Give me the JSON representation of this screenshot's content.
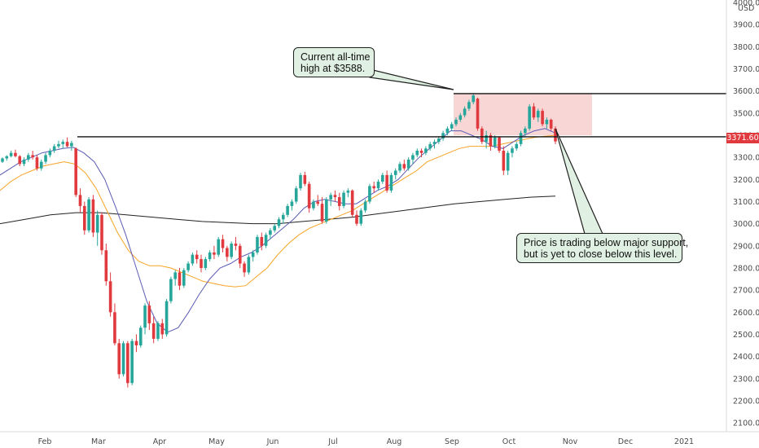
{
  "axis_currency": "USD",
  "last_price_label": "3371.60",
  "annotations": {
    "ath": {
      "lines": [
        "Current all-time",
        "high at $3588."
      ]
    },
    "support": {
      "lines": [
        "Price is trading below major support,",
        "but is yet to close below this level."
      ]
    }
  },
  "colors": {
    "up": "#26a69a",
    "down": "#e0393e",
    "ma_fast": "#5b5bb5",
    "ma_mid": "#f7a325",
    "ma_slow": "#222222",
    "zone": "#f8d6d6",
    "callout_bg": "#e0f0e2"
  },
  "chart_data": {
    "type": "candlestick",
    "title": "",
    "xlabel": "",
    "ylabel": "",
    "ylim": [
      2060,
      4000
    ],
    "y_ticks": [
      2100,
      2200,
      2300,
      2400,
      2500,
      2600,
      2700,
      2800,
      2900,
      3000,
      3100,
      3200,
      3300,
      3400,
      3500,
      3600,
      3700,
      3800,
      3900,
      4000
    ],
    "x_ticks": [
      "Feb",
      "Mar",
      "Apr",
      "May",
      "Jun",
      "Jul",
      "Aug",
      "Sep",
      "Oct",
      "Nov",
      "Dec",
      "2021"
    ],
    "grid": false,
    "levels": [
      {
        "name": "all-time high",
        "value": 3588
      },
      {
        "name": "major support",
        "value": 3393
      }
    ],
    "zone": {
      "from": "Sep",
      "to": "Oct",
      "low": 3400,
      "high": 3588
    },
    "series": [
      {
        "name": "",
        "type": "ma_fast",
        "values": [
          3220,
          3250,
          3280,
          3300,
          3320,
          3330,
          3340,
          3345,
          3320,
          3280,
          3200,
          3080,
          2950,
          2800,
          2650,
          2550,
          2510,
          2530,
          2600,
          2680,
          2750,
          2800,
          2820,
          2850,
          2870,
          2900,
          2940,
          2980,
          3020,
          3070,
          3100,
          3110,
          3100,
          3090,
          3090,
          3120,
          3150,
          3170,
          3200,
          3250,
          3300,
          3340,
          3380,
          3420,
          3420,
          3400,
          3380,
          3350,
          3340,
          3370,
          3400,
          3420,
          3430,
          3410
        ]
      },
      {
        "name": "",
        "type": "ma_mid",
        "values": [
          3150,
          3190,
          3220,
          3240,
          3260,
          3270,
          3280,
          3270,
          3230,
          3160,
          3060,
          2960,
          2880,
          2830,
          2810,
          2810,
          2800,
          2780,
          2760,
          2740,
          2730,
          2720,
          2715,
          2720,
          2760,
          2800,
          2860,
          2910,
          2950,
          2980,
          3000,
          3020,
          3040,
          3060,
          3090,
          3120,
          3150,
          3180,
          3210,
          3240,
          3280,
          3300,
          3320,
          3340,
          3350,
          3350,
          3350,
          3360,
          3370,
          3380,
          3390,
          3395,
          3400
        ]
      },
      {
        "name": "",
        "type": "ma_slow",
        "values": [
          3000,
          3020,
          3040,
          3050,
          3050,
          3040,
          3030,
          3020,
          3010,
          3005,
          3000,
          3000,
          3010,
          3020,
          3030,
          3045,
          3060,
          3075,
          3090,
          3100,
          3110,
          3120,
          3125
        ]
      },
      {
        "name": "",
        "type": "candles",
        "ohlc": [
          [
            3280,
            3300,
            3275,
            3295
          ],
          [
            3295,
            3310,
            3285,
            3305
          ],
          [
            3305,
            3330,
            3300,
            3320
          ],
          [
            3320,
            3335,
            3300,
            3305
          ],
          [
            3305,
            3310,
            3260,
            3270
          ],
          [
            3270,
            3300,
            3260,
            3290
          ],
          [
            3290,
            3320,
            3280,
            3310
          ],
          [
            3310,
            3330,
            3290,
            3300
          ],
          [
            3300,
            3310,
            3240,
            3250
          ],
          [
            3250,
            3290,
            3240,
            3280
          ],
          [
            3280,
            3320,
            3270,
            3310
          ],
          [
            3310,
            3340,
            3300,
            3330
          ],
          [
            3330,
            3360,
            3320,
            3350
          ],
          [
            3350,
            3375,
            3340,
            3360
          ],
          [
            3360,
            3380,
            3340,
            3370
          ],
          [
            3370,
            3390,
            3345,
            3350
          ],
          [
            3350,
            3375,
            3330,
            3365
          ],
          [
            3340,
            3345,
            3120,
            3130
          ],
          [
            3130,
            3160,
            3050,
            3080
          ],
          [
            3080,
            3100,
            2950,
            2970
          ],
          [
            2970,
            3120,
            2960,
            3110
          ],
          [
            3110,
            3130,
            2940,
            2960
          ],
          [
            2960,
            3060,
            2900,
            3040
          ],
          [
            3040,
            3050,
            2860,
            2880
          ],
          [
            2880,
            2910,
            2720,
            2740
          ],
          [
            2740,
            2780,
            2580,
            2600
          ],
          [
            2600,
            2640,
            2450,
            2460
          ],
          [
            2460,
            2480,
            2300,
            2320
          ],
          [
            2320,
            2470,
            2310,
            2460
          ],
          [
            2460,
            2470,
            2260,
            2280
          ],
          [
            2280,
            2480,
            2270,
            2470
          ],
          [
            2470,
            2500,
            2420,
            2450
          ],
          [
            2450,
            2540,
            2440,
            2530
          ],
          [
            2530,
            2640,
            2500,
            2630
          ],
          [
            2630,
            2650,
            2520,
            2550
          ],
          [
            2550,
            2580,
            2460,
            2480
          ],
          [
            2480,
            2560,
            2470,
            2550
          ],
          [
            2550,
            2570,
            2480,
            2500
          ],
          [
            2500,
            2660,
            2490,
            2650
          ],
          [
            2650,
            2760,
            2640,
            2750
          ],
          [
            2750,
            2790,
            2720,
            2780
          ],
          [
            2780,
            2800,
            2700,
            2720
          ],
          [
            2720,
            2800,
            2710,
            2790
          ],
          [
            2790,
            2830,
            2780,
            2820
          ],
          [
            2820,
            2870,
            2810,
            2860
          ],
          [
            2860,
            2880,
            2820,
            2840
          ],
          [
            2840,
            2860,
            2780,
            2800
          ],
          [
            2800,
            2850,
            2790,
            2840
          ],
          [
            2840,
            2880,
            2830,
            2870
          ],
          [
            2870,
            2900,
            2840,
            2860
          ],
          [
            2860,
            2940,
            2850,
            2930
          ],
          [
            2930,
            2950,
            2870,
            2890
          ],
          [
            2890,
            2900,
            2830,
            2850
          ],
          [
            2850,
            2920,
            2840,
            2910
          ],
          [
            2910,
            2940,
            2880,
            2900
          ],
          [
            2900,
            2910,
            2800,
            2820
          ],
          [
            2820,
            2830,
            2760,
            2780
          ],
          [
            2780,
            2860,
            2770,
            2850
          ],
          [
            2850,
            2880,
            2830,
            2870
          ],
          [
            2870,
            2950,
            2860,
            2940
          ],
          [
            2940,
            2960,
            2880,
            2900
          ],
          [
            2900,
            2960,
            2890,
            2950
          ],
          [
            2950,
            2980,
            2930,
            2970
          ],
          [
            2970,
            3000,
            2960,
            2990
          ],
          [
            2990,
            3030,
            2980,
            3020
          ],
          [
            3020,
            3050,
            3000,
            3040
          ],
          [
            3040,
            3090,
            3030,
            3080
          ],
          [
            3080,
            3110,
            3060,
            3100
          ],
          [
            3100,
            3170,
            3090,
            3160
          ],
          [
            3160,
            3230,
            3150,
            3220
          ],
          [
            3220,
            3235,
            3170,
            3180
          ],
          [
            3180,
            3190,
            3050,
            3070
          ],
          [
            3070,
            3110,
            3060,
            3100
          ],
          [
            3100,
            3130,
            3080,
            3090
          ],
          [
            3090,
            3120,
            3000,
            3010
          ],
          [
            3010,
            3120,
            3000,
            3110
          ],
          [
            3110,
            3140,
            3080,
            3130
          ],
          [
            3130,
            3150,
            3100,
            3120
          ],
          [
            3120,
            3140,
            3060,
            3080
          ],
          [
            3080,
            3150,
            3070,
            3140
          ],
          [
            3140,
            3160,
            3120,
            3150
          ],
          [
            3150,
            3155,
            3030,
            3040
          ],
          [
            3040,
            3060,
            2990,
            3000
          ],
          [
            3000,
            3070,
            2990,
            3060
          ],
          [
            3060,
            3110,
            3050,
            3100
          ],
          [
            3100,
            3180,
            3090,
            3170
          ],
          [
            3170,
            3190,
            3140,
            3160
          ],
          [
            3160,
            3200,
            3150,
            3190
          ],
          [
            3190,
            3230,
            3180,
            3220
          ],
          [
            3220,
            3240,
            3140,
            3150
          ],
          [
            3150,
            3230,
            3140,
            3220
          ],
          [
            3220,
            3250,
            3200,
            3240
          ],
          [
            3240,
            3280,
            3230,
            3270
          ],
          [
            3270,
            3290,
            3240,
            3250
          ],
          [
            3250,
            3300,
            3240,
            3290
          ],
          [
            3290,
            3320,
            3270,
            3310
          ],
          [
            3310,
            3340,
            3300,
            3330
          ],
          [
            3330,
            3340,
            3300,
            3320
          ],
          [
            3320,
            3350,
            3310,
            3340
          ],
          [
            3340,
            3370,
            3330,
            3360
          ],
          [
            3360,
            3380,
            3340,
            3370
          ],
          [
            3370,
            3395,
            3360,
            3385
          ],
          [
            3385,
            3420,
            3375,
            3410
          ],
          [
            3410,
            3440,
            3400,
            3430
          ],
          [
            3430,
            3460,
            3420,
            3450
          ],
          [
            3450,
            3480,
            3440,
            3470
          ],
          [
            3470,
            3500,
            3460,
            3490
          ],
          [
            3490,
            3530,
            3480,
            3520
          ],
          [
            3520,
            3560,
            3510,
            3550
          ],
          [
            3550,
            3588,
            3540,
            3580
          ],
          [
            3565,
            3570,
            3420,
            3430
          ],
          [
            3430,
            3440,
            3360,
            3370
          ],
          [
            3370,
            3420,
            3340,
            3400
          ],
          [
            3400,
            3410,
            3330,
            3350
          ],
          [
            3350,
            3400,
            3340,
            3390
          ],
          [
            3390,
            3395,
            3320,
            3330
          ],
          [
            3330,
            3350,
            3220,
            3240
          ],
          [
            3240,
            3330,
            3220,
            3320
          ],
          [
            3320,
            3350,
            3300,
            3340
          ],
          [
            3340,
            3370,
            3330,
            3360
          ],
          [
            3360,
            3420,
            3350,
            3410
          ],
          [
            3410,
            3440,
            3390,
            3430
          ],
          [
            3430,
            3540,
            3420,
            3530
          ],
          [
            3530,
            3545,
            3470,
            3480
          ],
          [
            3480,
            3520,
            3460,
            3510
          ],
          [
            3510,
            3520,
            3440,
            3450
          ],
          [
            3450,
            3480,
            3430,
            3470
          ],
          [
            3470,
            3475,
            3420,
            3430
          ],
          [
            3430,
            3440,
            3360,
            3372
          ]
        ]
      }
    ]
  }
}
